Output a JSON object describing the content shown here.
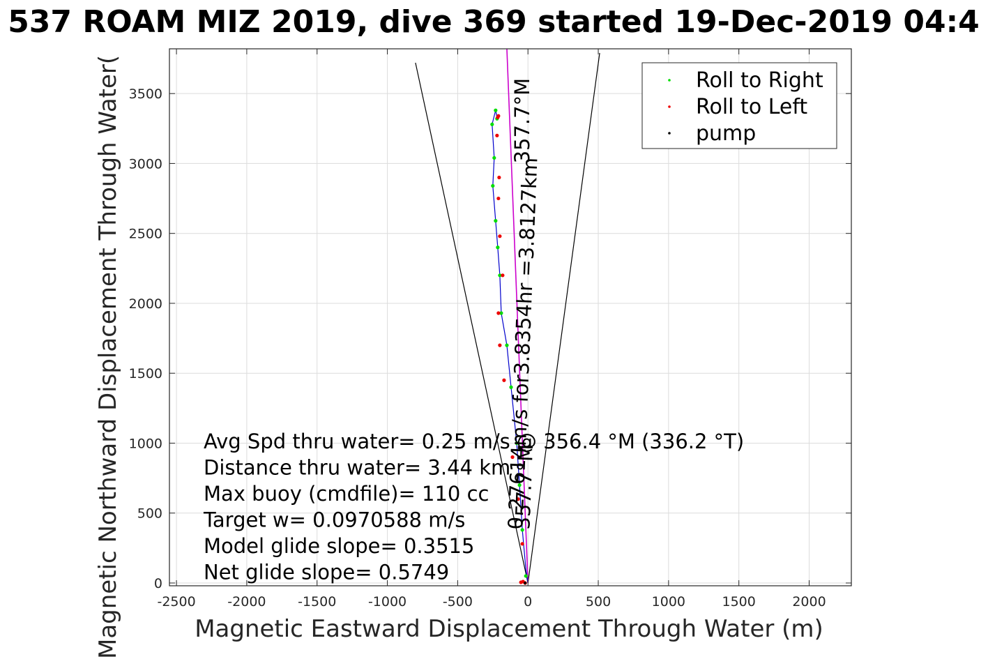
{
  "chart_data": {
    "type": "scatter",
    "title": "537 ROAM MIZ 2019, dive 369 started 19-Dec-2019 04:4",
    "xlabel": "Magnetic Eastward Displacement Through Water (m)",
    "ylabel": "Magnetic Northward Displacement Through Water(",
    "xlim": [
      -2550,
      2300
    ],
    "ylim": [
      -20,
      3820
    ],
    "xticks": [
      -2500,
      -2000,
      -1500,
      -1000,
      -500,
      0,
      500,
      1000,
      1500,
      2000
    ],
    "xtick_labels": [
      "-2500",
      "-2000",
      "-1500",
      "-1000",
      "-500",
      "0",
      "500",
      "1000",
      "1500",
      "2000"
    ],
    "yticks": [
      0,
      500,
      1000,
      1500,
      2000,
      2500,
      3000,
      3500
    ],
    "ytick_labels": [
      "0",
      "500",
      "1000",
      "1500",
      "2000",
      "2500",
      "3000",
      "3500"
    ],
    "grid": true,
    "legend_position": "top-right",
    "series": [
      {
        "name": "Roll to Right",
        "color": "#00dd00",
        "marker": "dot",
        "x": [
          -15,
          -40,
          -60,
          -80,
          -120,
          -150,
          -190,
          -200,
          -215,
          -230,
          -250,
          -240,
          -255,
          -230,
          -220
        ],
        "y": [
          50,
          380,
          700,
          1000,
          1400,
          1700,
          1930,
          2200,
          2400,
          2590,
          2840,
          3040,
          3280,
          3380,
          3320
        ]
      },
      {
        "name": "Roll to Left",
        "color": "#ee0000",
        "marker": "dot",
        "x": [
          -50,
          -20,
          -35,
          -40,
          -70,
          -110,
          -170,
          -200,
          -210,
          -180,
          -200,
          -210,
          -205,
          -220,
          -215,
          -210
        ],
        "y": [
          5,
          0,
          10,
          280,
          600,
          900,
          1450,
          1700,
          1930,
          2200,
          2480,
          2750,
          2900,
          3200,
          3330,
          3340
        ]
      },
      {
        "name": "pump",
        "color": "#000000",
        "marker": "dot",
        "x": [
          -20
        ],
        "y": [
          0
        ]
      }
    ],
    "track_line": {
      "color": "#0000cc",
      "x": [
        0,
        -15,
        -40,
        -60,
        -80,
        -120,
        -150,
        -190,
        -200,
        -215,
        -230,
        -250,
        -240,
        -255,
        -230,
        -220,
        -215
      ],
      "y": [
        0,
        100,
        380,
        700,
        1000,
        1400,
        1700,
        1930,
        2200,
        2400,
        2590,
        2840,
        3040,
        3280,
        3380,
        3330,
        3320
      ]
    },
    "heading_line": {
      "color": "#cc00cc",
      "x": [
        0,
        -150
      ],
      "y": [
        0,
        3820
      ]
    },
    "cone_lines": {
      "color": "#000000",
      "left": {
        "x": [
          0,
          -800
        ],
        "y": [
          0,
          3720
        ]
      },
      "right": {
        "x": [
          0,
          510
        ],
        "y": [
          0,
          3790
        ]
      }
    },
    "rotated_labels": [
      {
        "text": "0.27614m/s for3.8354hr =3.8127km",
        "x": -40,
        "y": 380,
        "angle": -87.7
      },
      {
        "text": "357.7°M",
        "x": 10,
        "y": 380,
        "angle": -87.7
      },
      {
        "text": "357.7°M",
        "x": 10,
        "y": 3000,
        "angle": -90
      }
    ],
    "annotations": [
      "Avg Spd thru water=  0.25 m/s @ 356.4 °M (336.2 °T)",
      "Distance thru water=  3.44 km",
      "Max buoy (cmdfile)= 110 cc",
      "Target w= 0.0970588 m/s",
      "Model glide slope= 0.3515",
      "Net glide slope= 0.5749"
    ]
  }
}
